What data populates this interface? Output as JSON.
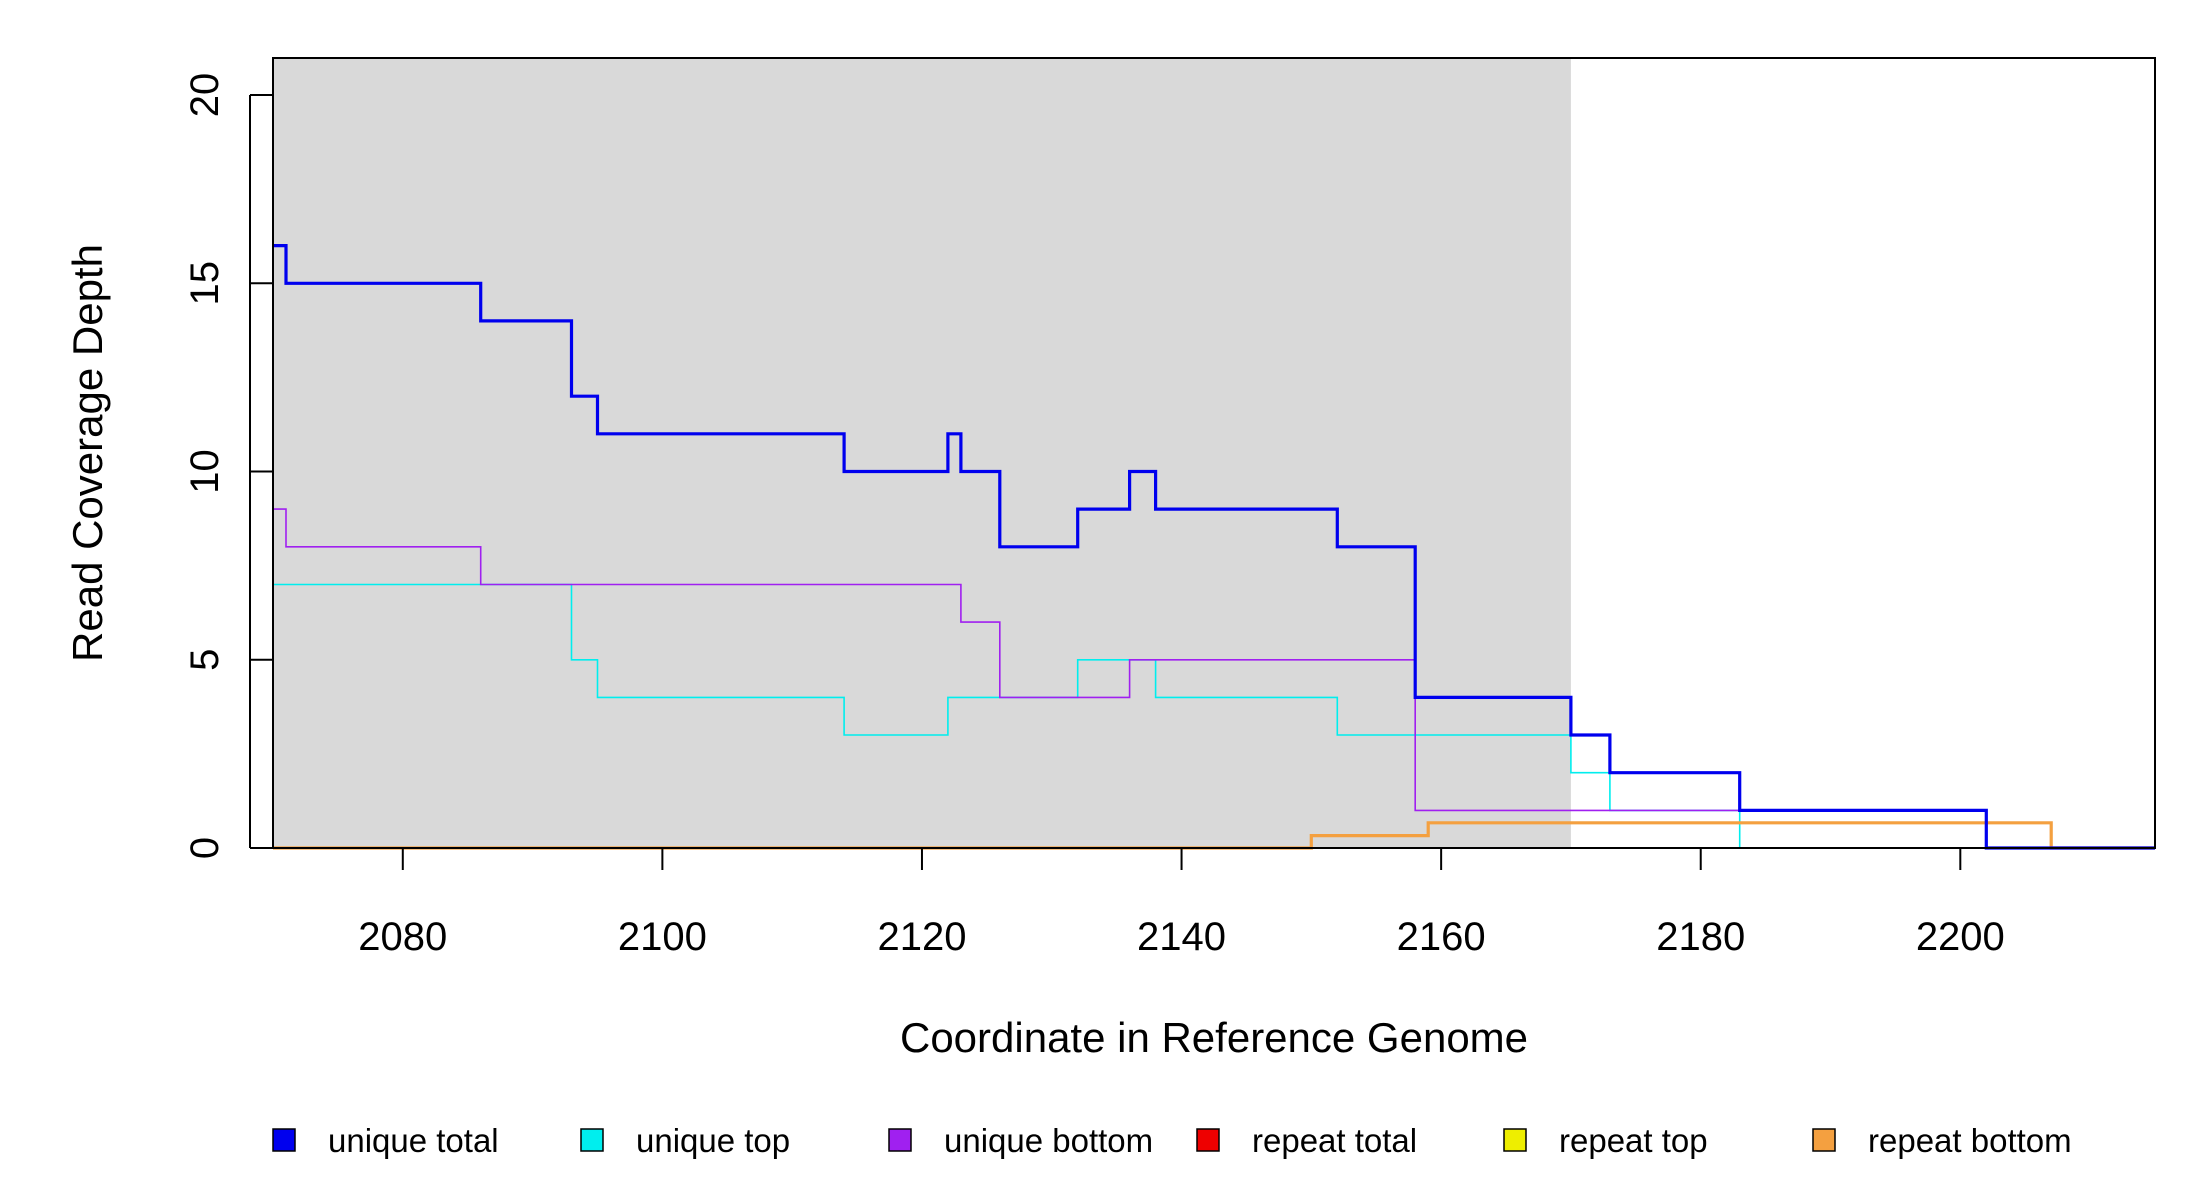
{
  "chart_data": {
    "type": "line",
    "title": "",
    "xlabel": "Coordinate in Reference Genome",
    "ylabel": "Read Coverage Depth",
    "xlim": [
      2070,
      2215
    ],
    "ylim": [
      0,
      20
    ],
    "x_ticks": [
      2080,
      2100,
      2120,
      2140,
      2160,
      2180,
      2200
    ],
    "y_ticks": [
      0,
      5,
      10,
      15,
      20
    ],
    "shaded_region": {
      "x_start": 2070,
      "x_end": 2170,
      "color": "#d9d9d9"
    },
    "grid": false,
    "legend_position": "bottom",
    "series": [
      {
        "name": "unique total",
        "color": "#0000ee",
        "style": "thick",
        "points": [
          [
            2070,
            16
          ],
          [
            2071,
            15
          ],
          [
            2086,
            14
          ],
          [
            2093,
            12
          ],
          [
            2095,
            11
          ],
          [
            2114,
            10
          ],
          [
            2122,
            11
          ],
          [
            2123,
            10
          ],
          [
            2126,
            8
          ],
          [
            2132,
            9
          ],
          [
            2136,
            10
          ],
          [
            2138,
            9
          ],
          [
            2152,
            8
          ],
          [
            2158,
            4
          ],
          [
            2170,
            3
          ],
          [
            2173,
            2
          ],
          [
            2183,
            1
          ],
          [
            2202,
            0
          ],
          [
            2215,
            0
          ]
        ]
      },
      {
        "name": "unique top",
        "color": "#00eeee",
        "style": "thin",
        "points": [
          [
            2070,
            7
          ],
          [
            2093,
            5
          ],
          [
            2095,
            4
          ],
          [
            2114,
            3
          ],
          [
            2122,
            4
          ],
          [
            2132,
            5
          ],
          [
            2138,
            4
          ],
          [
            2152,
            3
          ],
          [
            2170,
            2
          ],
          [
            2173,
            1
          ],
          [
            2183,
            0
          ],
          [
            2215,
            0
          ]
        ]
      },
      {
        "name": "unique bottom",
        "color": "#a020f0",
        "style": "thin",
        "points": [
          [
            2070,
            9
          ],
          [
            2071,
            8
          ],
          [
            2086,
            7
          ],
          [
            2123,
            6
          ],
          [
            2126,
            4
          ],
          [
            2136,
            5
          ],
          [
            2158,
            1
          ],
          [
            2202,
            0
          ],
          [
            2215,
            0
          ]
        ]
      },
      {
        "name": "repeat total",
        "color": "#ee0000",
        "style": "thin",
        "points": [
          [
            2070,
            0
          ],
          [
            2215,
            0
          ]
        ]
      },
      {
        "name": "repeat top",
        "color": "#eeee00",
        "style": "thin",
        "points": [
          [
            2070,
            0
          ],
          [
            2215,
            0
          ]
        ]
      },
      {
        "name": "repeat bottom",
        "color": "#f4a040",
        "style": "thick",
        "points": [
          [
            2070,
            0
          ],
          [
            2150,
            0.33
          ],
          [
            2159,
            0.67
          ],
          [
            2207,
            0
          ],
          [
            2215,
            0
          ]
        ]
      }
    ]
  }
}
